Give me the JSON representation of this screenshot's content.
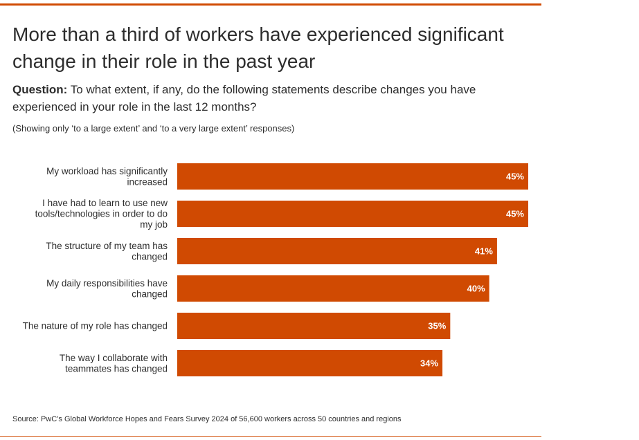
{
  "title": "More than a third of workers have experienced significant change in their role in the past year",
  "question_label": "Question:",
  "question_text": " To what extent, if any, do the following statements describe changes you have experienced in your role in the last 12 months?",
  "note": "(Showing only ‘to a large extent’ and ‘to a very large extent’ responses)",
  "source": "Source: PwC’s Global Workforce Hopes and Fears Survey 2024 of 56,600 workers across 50 countries and regions",
  "colors": {
    "accent": "#d04a02",
    "bar": "#d04a02",
    "text": "#2d2d2d",
    "value_text": "#ffffff"
  },
  "chart_data": {
    "type": "bar",
    "orientation": "horizontal",
    "categories": [
      [
        "My workload has significantly",
        "increased"
      ],
      [
        "I have had to learn to use new",
        "tools/technologies in order to do",
        "my job"
      ],
      [
        "The structure of my team has",
        "changed"
      ],
      [
        "My daily responsibilities have",
        "changed"
      ],
      [
        "The nature of my role has changed"
      ],
      [
        "The way I collaborate with",
        "teammates has changed"
      ]
    ],
    "values": [
      45,
      45,
      41,
      40,
      35,
      34
    ],
    "value_labels": [
      "45%",
      "45%",
      "41%",
      "40%",
      "35%",
      "34%"
    ],
    "unit": "%",
    "grid": false,
    "legend": "none"
  }
}
